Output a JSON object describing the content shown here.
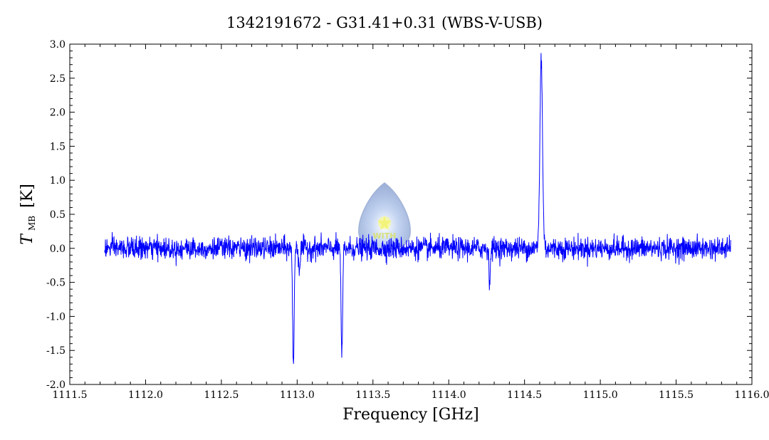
{
  "chart_data": {
    "type": "line",
    "title": "1342191672 - G31.41+0.31 (WBS-V-USB)",
    "xlabel": "Frequency [GHz]",
    "ylabel": {
      "main": "T",
      "subscript": "MB",
      "unit": "[K]"
    },
    "xlim": [
      1111.5,
      1116.0
    ],
    "ylim": [
      -2.0,
      3.0
    ],
    "x_ticks": [
      "1111.5",
      "1112.0",
      "1112.5",
      "1113.0",
      "1113.5",
      "1114.0",
      "1114.5",
      "1115.0",
      "1115.5",
      "1116.0"
    ],
    "y_ticks": [
      "-2.0",
      "-1.5",
      "-1.0",
      "-0.5",
      "0.0",
      "0.5",
      "1.0",
      "1.5",
      "2.0",
      "2.5",
      "3.0"
    ],
    "grid": false,
    "series": [
      {
        "color": "#0000ff",
        "x_range": [
          1111.73,
          1115.86
        ],
        "noise_rms": 0.08,
        "features": [
          {
            "center": 1112.975,
            "peak": -1.75,
            "kind": "absorption"
          },
          {
            "center": 1113.015,
            "peak": -0.3,
            "kind": "absorption"
          },
          {
            "center": 1113.295,
            "peak": -1.65,
            "kind": "absorption"
          },
          {
            "center": 1114.27,
            "peak": -0.45,
            "kind": "absorption"
          },
          {
            "center": 1114.61,
            "peak": 2.8,
            "kind": "emission"
          }
        ]
      }
    ],
    "logo": {
      "text": "WITH",
      "colors": {
        "drop": "#a8bde0",
        "star": "#f3f37a"
      }
    }
  }
}
